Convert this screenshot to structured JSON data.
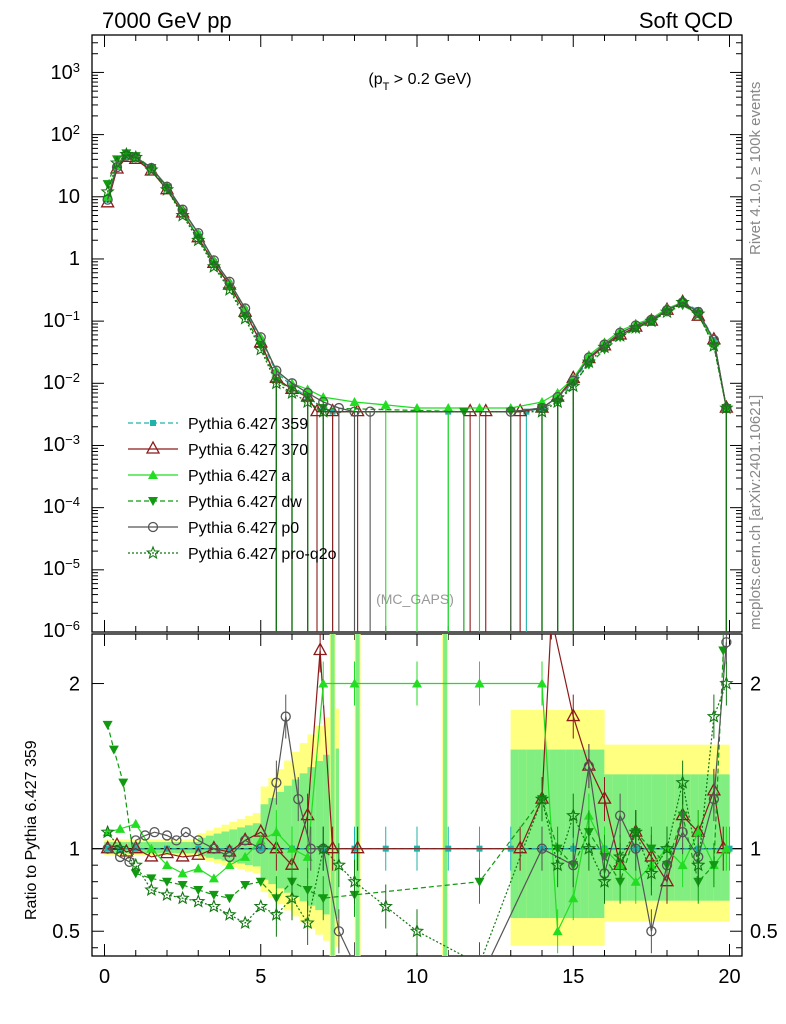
{
  "header": {
    "left_label": "7000 GeV pp",
    "right_label": "Soft QCD"
  },
  "side_labels": {
    "rivet": "Rivet 4.1.0, ≥ 100k events",
    "mcplots": "mcplots.cern.ch [arXiv:2401.10621]"
  },
  "chart_data": {
    "type": "line",
    "cut_label": "(p_T > 0.2 GeV)",
    "annotation": "(MC_GAPS)",
    "xlim": [
      -0.4,
      20.4
    ],
    "main_ylim": [
      1e-06,
      4000
    ],
    "main_yscale": "log",
    "main_yticks": [
      "10^3",
      "10^2",
      "10",
      "1",
      "10^-1",
      "10^-2",
      "10^-3",
      "10^-4",
      "10^-5",
      "10^-6"
    ],
    "ratio_ylabel": "Ratio to Pythia 6.427 359",
    "ratio_ylim": [
      0.35,
      2.3
    ],
    "ratio_yticks": [
      "2",
      "1",
      "0.5"
    ],
    "xticks": [
      "0",
      "5",
      "10",
      "15",
      "20"
    ],
    "colors": {
      "s359": "#20b2aa",
      "s370": "#8b1a1a",
      "sa": "#22dd22",
      "sdw": "#119911",
      "sp0": "#555555",
      "spro": "#117711",
      "band_yellow": "#ffff80",
      "band_green": "#80ee80"
    },
    "series": [
      {
        "key": "s359",
        "name": "Pythia 6.427 359",
        "x": [
          0.1,
          0.4,
          0.7,
          1.0,
          1.5,
          2.0,
          2.5,
          3.0,
          3.5,
          4.0,
          4.5,
          5.0,
          5.5,
          6.0,
          6.5,
          7.0,
          7.3,
          11.0,
          13.5,
          14.0,
          14.5,
          15.0,
          15.5,
          16.0,
          16.5,
          17.0,
          17.5,
          18.0,
          18.5,
          19.0,
          19.5,
          19.9
        ],
        "y": [
          9,
          30,
          45,
          42,
          28,
          14,
          6,
          2.5,
          0.9,
          0.4,
          0.15,
          0.05,
          0.015,
          0.009,
          0.006,
          0.004,
          0.0035,
          0.0035,
          0.0035,
          0.004,
          0.006,
          0.01,
          0.025,
          0.04,
          0.06,
          0.08,
          0.1,
          0.15,
          0.2,
          0.15,
          0.05,
          0.004
        ],
        "ratio_x": [
          0.1,
          0.5,
          1.0,
          2.0,
          3.0,
          4.0,
          5.0,
          6.0,
          7.0,
          8.0,
          9.0,
          10.0,
          11.0,
          12.0,
          13.0,
          14.0,
          15.0,
          16.0,
          17.0,
          18.0,
          19.0,
          20.0
        ],
        "ratio_y": [
          1,
          1,
          1,
          1,
          1,
          1,
          1,
          1,
          1,
          1,
          1,
          1,
          1,
          1,
          1,
          1,
          1,
          1,
          1,
          1,
          1,
          1
        ]
      },
      {
        "key": "s370",
        "name": "Pythia 6.427 370",
        "x": [
          0.1,
          0.4,
          0.7,
          1.0,
          1.5,
          2.0,
          2.5,
          3.0,
          3.5,
          4.0,
          4.5,
          5.0,
          5.5,
          6.0,
          6.5,
          6.8,
          7.3,
          8.1,
          11.7,
          12.2,
          13.3,
          14.0,
          14.5,
          15.0,
          15.5,
          16.0,
          16.5,
          17.0,
          17.5,
          18.0,
          18.5,
          19.0,
          19.5,
          19.9
        ],
        "y": [
          8,
          28,
          43,
          40,
          26,
          13,
          5.5,
          2.2,
          0.85,
          0.38,
          0.14,
          0.045,
          0.012,
          0.008,
          0.006,
          0.0035,
          0.0035,
          0.0035,
          0.0035,
          0.0035,
          0.0035,
          0.004,
          0.006,
          0.012,
          0.025,
          0.04,
          0.06,
          0.08,
          0.1,
          0.15,
          0.2,
          0.12,
          0.05,
          0.004
        ],
        "ratio_x": [
          0.1,
          0.4,
          0.7,
          1.0,
          1.5,
          2.0,
          2.5,
          3.0,
          3.5,
          4.0,
          4.5,
          5.0,
          5.5,
          6.0,
          6.5,
          6.9,
          7.3,
          8.1,
          13.3,
          14.0,
          14.3,
          15.0,
          15.5,
          16.0,
          16.5,
          17.0,
          17.5,
          18.0,
          18.5,
          19.0,
          19.5,
          19.8
        ],
        "ratio_y": [
          1.0,
          1.02,
          0.98,
          1.0,
          0.95,
          0.97,
          0.95,
          0.96,
          1.0,
          0.98,
          1.05,
          1.1,
          1.0,
          0.9,
          1.2,
          2.2,
          1.0,
          1.0,
          1.0,
          1.3,
          2.4,
          1.8,
          1.5,
          1.3,
          0.9,
          1.1,
          0.95,
          0.8,
          1.2,
          1.1,
          1.35,
          1.0
        ],
        "ratio_labels": []
      },
      {
        "key": "sa",
        "name": "Pythia 6.427 a",
        "x": [
          0.1,
          0.4,
          0.7,
          1.0,
          1.5,
          2.0,
          2.5,
          3.0,
          3.5,
          4.0,
          4.5,
          5.0,
          5.5,
          6.0,
          6.5,
          7.0,
          8.0,
          9.0,
          10.0,
          11.0,
          12.0,
          13.0,
          14.0,
          14.5,
          15.0,
          15.5,
          16.0,
          16.5,
          17.0,
          17.5,
          18.0,
          18.5,
          19.0,
          19.5,
          19.9
        ],
        "y": [
          10,
          32,
          48,
          44,
          29,
          15,
          6,
          2.6,
          0.95,
          0.42,
          0.16,
          0.055,
          0.016,
          0.01,
          0.008,
          0.006,
          0.005,
          0.0045,
          0.004,
          0.004,
          0.004,
          0.004,
          0.005,
          0.007,
          0.012,
          0.028,
          0.045,
          0.07,
          0.09,
          0.11,
          0.16,
          0.2,
          0.14,
          0.045,
          0.004
        ],
        "ratio_x": [
          0.1,
          0.5,
          1.0,
          1.5,
          2.0,
          2.5,
          3.0,
          3.5,
          4.0,
          4.5,
          5.0,
          5.5,
          6.0,
          6.5,
          7.0,
          8.0,
          10.0,
          12.0,
          14.0,
          14.5,
          15.0,
          15.5,
          16.0,
          16.5,
          17.0,
          17.5,
          18.0,
          18.5,
          19.0,
          19.5,
          19.9
        ],
        "ratio_y": [
          1.1,
          1.12,
          1.15,
          1.0,
          0.9,
          0.85,
          0.88,
          0.82,
          0.9,
          0.95,
          1.05,
          1.1,
          1.0,
          0.95,
          2.0,
          2.0,
          2.0,
          2.0,
          2.0,
          0.5,
          0.7,
          1.2,
          1.0,
          0.9,
          0.8,
          0.9,
          1.0,
          0.9,
          1.1,
          0.9,
          1.0
        ]
      },
      {
        "key": "sdw",
        "name": "Pythia 6.427 dw",
        "x": [
          0.1,
          0.4,
          0.7,
          1.0,
          1.5,
          2.0,
          2.5,
          3.0,
          3.5,
          4.0,
          4.5,
          5.0,
          5.5,
          6.0,
          6.5,
          7.0,
          11.5,
          13.0,
          14.0,
          14.5,
          15.0,
          15.5,
          16.0,
          16.5,
          17.0,
          17.5,
          18.0,
          18.5,
          19.0,
          19.5,
          19.9
        ],
        "y": [
          16,
          40,
          50,
          45,
          29,
          14,
          5.5,
          2.2,
          0.8,
          0.35,
          0.12,
          0.04,
          0.011,
          0.008,
          0.006,
          0.004,
          0.0035,
          0.0035,
          0.004,
          0.005,
          0.01,
          0.02,
          0.035,
          0.055,
          0.075,
          0.1,
          0.14,
          0.18,
          0.13,
          0.04,
          0.004
        ],
        "ratio_x": [
          0.1,
          0.3,
          0.6,
          1.0,
          1.5,
          2.0,
          2.5,
          3.0,
          3.5,
          4.0,
          4.5,
          5.0,
          5.5,
          6.0,
          6.5,
          7.0,
          8.0,
          12.0,
          14.0,
          14.5,
          15.0,
          15.5,
          16.0,
          16.5,
          17.0,
          17.5,
          18.0,
          18.5,
          19.0,
          19.5,
          19.8
        ],
        "ratio_y": [
          1.75,
          1.6,
          1.4,
          0.85,
          0.82,
          0.8,
          0.78,
          0.75,
          0.72,
          0.7,
          0.78,
          0.8,
          0.7,
          0.8,
          0.75,
          0.7,
          0.72,
          0.8,
          1.3,
          1.0,
          0.9,
          1.1,
          0.95,
          0.8,
          1.1,
          1.0,
          0.9,
          1.2,
          0.8,
          0.9,
          2.2
        ]
      },
      {
        "key": "sp0",
        "name": "Pythia 6.427 p0",
        "x": [
          0.1,
          0.4,
          0.7,
          1.0,
          1.5,
          2.0,
          2.5,
          3.0,
          3.5,
          4.0,
          4.5,
          5.0,
          5.5,
          6.0,
          6.5,
          7.0,
          7.5,
          8.0,
          8.5,
          13.0,
          14.0,
          14.5,
          15.0,
          15.5,
          16.0,
          16.5,
          17.0,
          17.5,
          18.0,
          18.5,
          19.0,
          19.5,
          19.9
        ],
        "y": [
          9,
          30,
          46,
          43,
          29,
          14.5,
          6.2,
          2.6,
          0.95,
          0.43,
          0.16,
          0.055,
          0.016,
          0.01,
          0.007,
          0.005,
          0.004,
          0.0035,
          0.0035,
          0.0035,
          0.004,
          0.006,
          0.011,
          0.026,
          0.042,
          0.065,
          0.085,
          0.105,
          0.15,
          0.2,
          0.14,
          0.05,
          0.004
        ],
        "ratio_x": [
          0.1,
          0.5,
          0.8,
          1.0,
          1.3,
          1.6,
          2.0,
          2.3,
          2.6,
          3.0,
          3.5,
          4.0,
          4.5,
          5.0,
          5.5,
          5.8,
          6.2,
          6.6,
          7.0,
          7.5,
          8.0,
          12.0,
          14.0,
          15.0,
          15.5,
          16.0,
          16.5,
          17.0,
          17.5,
          18.0,
          18.5,
          19.0,
          19.5,
          19.9
        ],
        "ratio_y": [
          1.0,
          0.95,
          0.92,
          1.05,
          1.08,
          1.1,
          1.08,
          1.05,
          1.1,
          1.05,
          1.0,
          0.95,
          1.05,
          1.0,
          1.4,
          1.8,
          1.3,
          1.0,
          1.0,
          0.5,
          0.3,
          0.2,
          1.0,
          0.9,
          1.5,
          0.85,
          1.2,
          1.0,
          0.5,
          0.9,
          1.1,
          0.95,
          1.3,
          2.25
        ]
      },
      {
        "key": "spro",
        "name": "Pythia 6.427 pro-q2o",
        "x": [
          0.1,
          0.4,
          0.7,
          1.0,
          1.5,
          2.0,
          2.5,
          3.0,
          3.5,
          4.0,
          4.5,
          5.0,
          5.5,
          6.0,
          6.5,
          7.0,
          14.0,
          14.5,
          15.0,
          15.5,
          16.0,
          16.5,
          17.0,
          17.5,
          18.0,
          18.5,
          19.0,
          19.5,
          19.9
        ],
        "y": [
          12,
          35,
          48,
          43,
          27,
          13,
          5,
          2,
          0.75,
          0.32,
          0.11,
          0.035,
          0.01,
          0.007,
          0.005,
          0.0035,
          0.0035,
          0.005,
          0.009,
          0.022,
          0.038,
          0.058,
          0.078,
          0.1,
          0.14,
          0.2,
          0.13,
          0.04,
          0.004
        ],
        "ratio_x": [
          0.1,
          0.5,
          1.0,
          1.5,
          2.0,
          2.5,
          3.0,
          3.5,
          4.0,
          4.5,
          5.0,
          5.5,
          6.0,
          6.5,
          7.0,
          7.5,
          8.0,
          9.0,
          10.0,
          12.0,
          14.0,
          14.5,
          15.0,
          15.5,
          16.0,
          16.5,
          17.0,
          17.5,
          18.0,
          18.5,
          19.0,
          19.5,
          19.9
        ],
        "ratio_y": [
          1.1,
          1.0,
          0.9,
          0.75,
          0.72,
          0.7,
          0.68,
          0.65,
          0.6,
          0.55,
          0.65,
          0.6,
          0.7,
          0.55,
          1.0,
          0.9,
          0.8,
          0.65,
          0.5,
          0.3,
          1.3,
          0.9,
          1.2,
          1.0,
          0.8,
          0.95,
          1.1,
          0.85,
          1.0,
          1.4,
          0.9,
          1.8,
          2.0
        ]
      }
    ]
  }
}
